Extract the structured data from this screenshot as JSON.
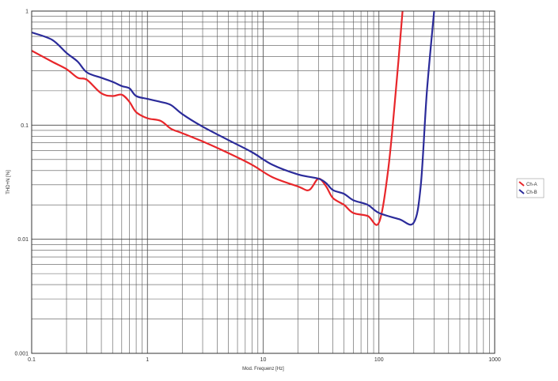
{
  "chart_data": {
    "type": "line",
    "xscale": "log",
    "yscale": "log",
    "xlim": [
      0.1,
      1000
    ],
    "ylim": [
      0.001,
      1
    ],
    "grid": true,
    "legend_position": "right",
    "xlabel": "Mod. Frequenz [Hz]",
    "ylabel": "THD+N [%]",
    "x_ticks": [
      "0.1",
      "1",
      "10",
      "100",
      "1000"
    ],
    "y_ticks": [
      "1",
      "0.1",
      "0.01",
      "0.001"
    ],
    "series": [
      {
        "name": "Ch-A",
        "color": "#e8262a",
        "x": [
          0.1,
          0.15,
          0.2,
          0.25,
          0.3,
          0.4,
          0.5,
          0.6,
          0.7,
          0.8,
          1.0,
          1.3,
          1.6,
          2,
          3,
          5,
          8,
          12,
          20,
          25,
          30,
          35,
          40,
          50,
          60,
          80,
          100,
          120,
          140,
          160
        ],
        "y": [
          0.45,
          0.36,
          0.31,
          0.26,
          0.25,
          0.19,
          0.18,
          0.185,
          0.16,
          0.13,
          0.115,
          0.109,
          0.093,
          0.085,
          0.072,
          0.057,
          0.045,
          0.035,
          0.029,
          0.027,
          0.034,
          0.029,
          0.023,
          0.02,
          0.017,
          0.016,
          0.014,
          0.04,
          0.2,
          1.0
        ]
      },
      {
        "name": "Ch-B",
        "color": "#2b2b9a",
        "x": [
          0.1,
          0.15,
          0.2,
          0.25,
          0.3,
          0.4,
          0.5,
          0.6,
          0.7,
          0.8,
          1.0,
          1.3,
          1.6,
          2,
          3,
          5,
          8,
          12,
          20,
          30,
          35,
          40,
          50,
          60,
          80,
          100,
          150,
          200,
          230,
          260,
          300
        ],
        "y": [
          0.65,
          0.56,
          0.43,
          0.36,
          0.29,
          0.26,
          0.24,
          0.22,
          0.21,
          0.18,
          0.17,
          0.16,
          0.15,
          0.125,
          0.097,
          0.074,
          0.058,
          0.045,
          0.037,
          0.034,
          0.031,
          0.027,
          0.025,
          0.022,
          0.02,
          0.017,
          0.015,
          0.014,
          0.03,
          0.2,
          1.0
        ]
      }
    ]
  }
}
